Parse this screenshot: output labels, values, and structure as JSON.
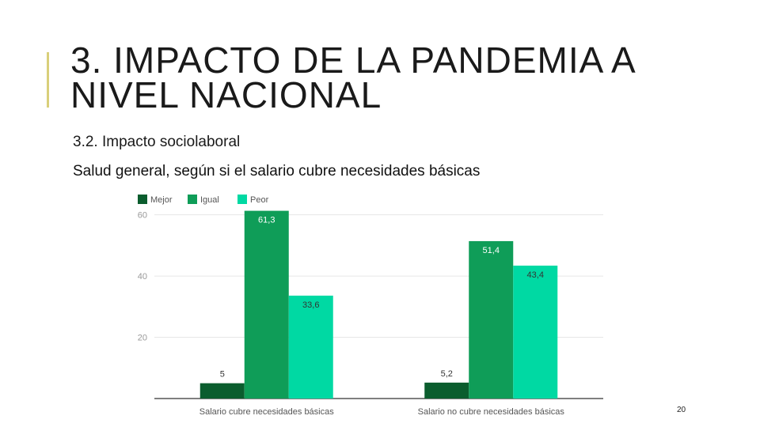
{
  "slide": {
    "title": "3. IMPACTO DE LA PANDEMIA A NIVEL NACIONAL",
    "subtitle": "3.2. Impacto sociolaboral",
    "page_number": "20",
    "accent_color": "#d9cf7a"
  },
  "chart_data": {
    "type": "bar",
    "title": "Salud general, según si el salario cubre necesidades básicas",
    "xlabel": "",
    "ylabel": "",
    "categories": [
      "Salario cubre necesidades básicas",
      "Salario no cubre necesidades básicas"
    ],
    "series": [
      {
        "name": "Mejor",
        "values": [
          5,
          5.2
        ],
        "labels": [
          "5",
          "5,2"
        ],
        "color": "#0b5d2e",
        "label_color": "#ffffff"
      },
      {
        "name": "Igual",
        "values": [
          61.3,
          51.4
        ],
        "labels": [
          "61,3",
          "51,4"
        ],
        "color": "#0f9d58",
        "label_color": "#ffffff"
      },
      {
        "name": "Peor",
        "values": [
          33.6,
          43.4
        ],
        "labels": [
          "33,6",
          "43,4"
        ],
        "color": "#00d9a3",
        "label_color": "#333333"
      }
    ],
    "ylim": [
      0,
      63
    ],
    "yticks": [
      20,
      40,
      60
    ],
    "grid": true,
    "legend": "top-left"
  }
}
